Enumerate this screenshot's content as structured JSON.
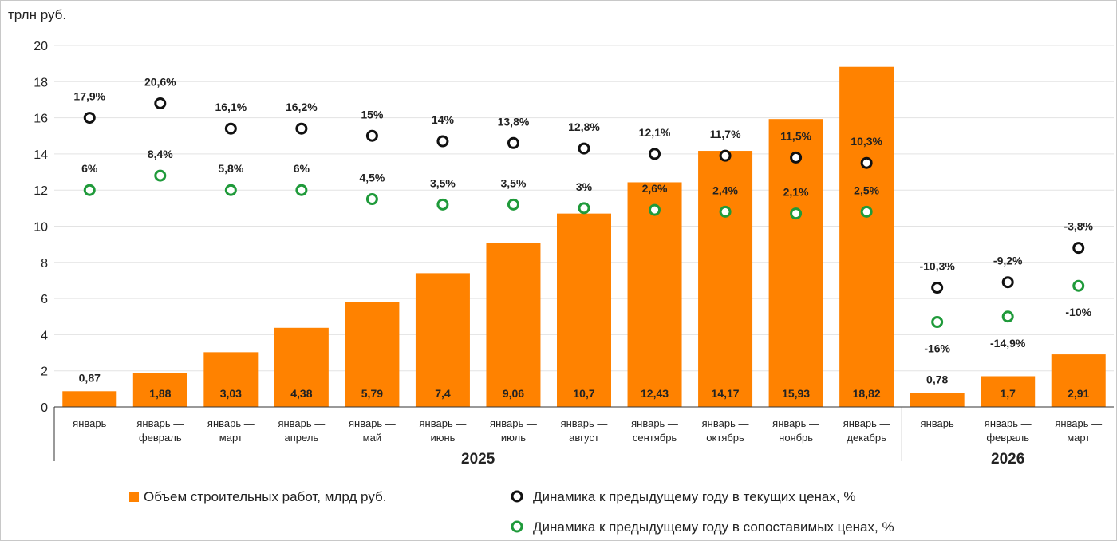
{
  "chart_data": {
    "type": "bar",
    "ylabel": "трлн руб.",
    "ylim": [
      0,
      20
    ],
    "yticks": [
      0,
      2,
      4,
      6,
      8,
      10,
      12,
      14,
      16,
      18,
      20
    ],
    "grid": true,
    "legend_position": "bottom",
    "colors": {
      "bar": "#ff8200",
      "current_marker": "#111111",
      "comparable_marker": "#1f9a3a"
    },
    "categories": [
      [
        "январь"
      ],
      [
        "январь —",
        "февраль"
      ],
      [
        "январь —",
        "март"
      ],
      [
        "январь —",
        "апрель"
      ],
      [
        "январь —",
        "май"
      ],
      [
        "январь —",
        "июнь"
      ],
      [
        "январь —",
        "июль"
      ],
      [
        "январь —",
        "август"
      ],
      [
        "январь —",
        "сентябрь"
      ],
      [
        "январь —",
        "октябрь"
      ],
      [
        "январь —",
        "ноябрь"
      ],
      [
        "январь —",
        "декабрь"
      ],
      [
        "январь"
      ],
      [
        "январь —",
        "февраль"
      ],
      [
        "январь —",
        "март"
      ]
    ],
    "groups": [
      {
        "label": "2025",
        "start": 0,
        "end": 11
      },
      {
        "label": "2026",
        "start": 12,
        "end": 14
      }
    ],
    "series": [
      {
        "name": "Объем строительных работ, млрд руб.",
        "kind": "bar",
        "values": [
          0.87,
          1.88,
          3.03,
          4.38,
          5.79,
          7.4,
          9.06,
          10.7,
          12.43,
          14.17,
          15.93,
          18.82,
          0.78,
          1.7,
          2.91
        ],
        "labels": [
          "0,87",
          "1,88",
          "3,03",
          "4,38",
          "5,79",
          "7,4",
          "9,06",
          "10,7",
          "12,43",
          "14,17",
          "15,93",
          "18,82",
          "0,78",
          "1,7",
          "2,91"
        ]
      },
      {
        "name": "Динамика к предыдущему году в текущих ценах, %",
        "kind": "marker",
        "marker_positions": [
          16.0,
          16.8,
          15.4,
          15.4,
          15.0,
          14.7,
          14.6,
          14.3,
          14.0,
          13.9,
          13.8,
          13.5,
          6.6,
          6.9,
          8.8
        ],
        "labels": [
          "17,9%",
          "20,6%",
          "16,1%",
          "16,2%",
          "15%",
          "14%",
          "13,8%",
          "12,8%",
          "12,1%",
          "11,7%",
          "11,5%",
          "10,3%",
          "-10,3%",
          "-9,2%",
          "-3,8%"
        ]
      },
      {
        "name": "Динамика к предыдущему году в сопоставимых ценах, %",
        "kind": "marker",
        "marker_positions": [
          12.0,
          12.8,
          12.0,
          12.0,
          11.5,
          11.2,
          11.2,
          11.0,
          10.9,
          10.8,
          10.7,
          10.8,
          4.7,
          5.0,
          6.7
        ],
        "labels": [
          "6%",
          "8,4%",
          "5,8%",
          "6%",
          "4,5%",
          "3,5%",
          "3,5%",
          "3%",
          "2,6%",
          "2,4%",
          "2,1%",
          "2,5%",
          "-16%",
          "-14,9%",
          "-10%"
        ]
      }
    ]
  }
}
